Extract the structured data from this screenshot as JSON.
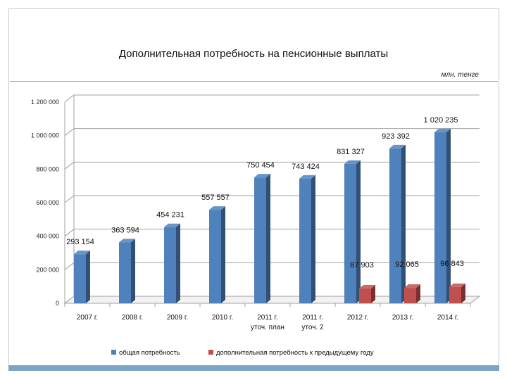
{
  "title": "Дополнительная потребность на пенсионные выплаты",
  "unit": "млн. тенге",
  "chart_data": {
    "type": "bar",
    "categories": [
      [
        "2007 г."
      ],
      [
        "2008 г."
      ],
      [
        "2009 г."
      ],
      [
        "2010 г."
      ],
      [
        "2011 г.",
        "уточ. план"
      ],
      [
        "2011 г.",
        "уточ. 2"
      ],
      [
        "2012 г."
      ],
      [
        "2013 г."
      ],
      [
        "2014 г."
      ]
    ],
    "series": [
      {
        "name": "общая потребность",
        "color": "#4f81bd",
        "values": [
          293154,
          363594,
          454231,
          557557,
          750454,
          743424,
          831327,
          923392,
          1020235
        ],
        "labels": [
          "293 154",
          "363 594",
          "454 231",
          "557 557",
          "750 454",
          "743 424",
          "831 327",
          "923 392",
          "1 020 235"
        ]
      },
      {
        "name": "дополнительная потребность к предыдущему году",
        "color": "#c0504d",
        "values": [
          null,
          null,
          null,
          null,
          null,
          null,
          87903,
          92065,
          96843
        ],
        "labels": [
          null,
          null,
          null,
          null,
          null,
          null,
          "87 903",
          "92 065",
          "96 843"
        ]
      }
    ],
    "ylim": [
      0,
      1200000
    ],
    "yticks": [
      0,
      200000,
      400000,
      600000,
      800000,
      1000000,
      1200000
    ],
    "ytick_labels": [
      "0",
      "200 000",
      "400 000",
      "600 000",
      "800 000",
      "1 000 000",
      "1 200 000"
    ],
    "grid": true,
    "legend_position": "bottom"
  }
}
